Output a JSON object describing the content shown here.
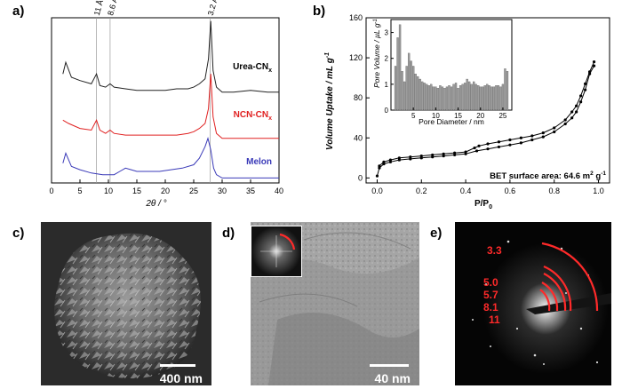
{
  "panels": {
    "a": {
      "label": "a)",
      "xlabel": "2θ / °",
      "top_annotations": [
        "11 Å",
        "8.6 Å",
        "3.2 Å"
      ],
      "series": [
        {
          "name": "Urea-CN",
          "sub": "x",
          "color": "#222222"
        },
        {
          "name": "NCN-CN",
          "sub": "x",
          "color": "#e02020"
        },
        {
          "name": "Melon",
          "sub": "",
          "color": "#3a3ab8"
        }
      ],
      "xticks": [
        "0",
        "5",
        "10",
        "15",
        "20",
        "25",
        "30",
        "35",
        "40"
      ]
    },
    "b": {
      "label": "b)",
      "ylabel": "Volume Uptake / mL g",
      "ylabel_sup": "-1",
      "xlabel_main": "P/P",
      "xlabel_sub": "0",
      "yticks": [
        "0",
        "40",
        "80",
        "120",
        "160"
      ],
      "xticks": [
        "0.0",
        "0.2",
        "0.4",
        "0.6",
        "0.8",
        "1.0"
      ],
      "bet_text": "BET surface area: 64.6 m",
      "bet_sup1": "2",
      "bet_g": " g",
      "bet_sup2": "-1",
      "inset": {
        "ylabel": "Pore Volume / µL g",
        "ylabel_sup": "-1",
        "xlabel": "Pore Diameter / nm",
        "xticks": [
          "5",
          "10",
          "15",
          "20",
          "25"
        ],
        "yticks": [
          "0",
          "1",
          "2",
          "3"
        ]
      }
    },
    "c": {
      "label": "c)",
      "scalebar": "400 nm"
    },
    "d": {
      "label": "d)",
      "scalebar": "40 nm"
    },
    "e": {
      "label": "e)",
      "rings": [
        "3.3",
        "5.0",
        "5.7",
        "8.1",
        "11"
      ]
    }
  },
  "colors": {
    "urea": "#222222",
    "ncn": "#e02020",
    "melon": "#3a3ab8",
    "ring": "#ff2a2a"
  },
  "chart_data": [
    {
      "type": "line",
      "xlabel": "2θ / °",
      "ylabel": "",
      "xlim": [
        0,
        40
      ],
      "series": [
        {
          "name": "Urea-CNx",
          "x": [
            2,
            2.5,
            3.5,
            5,
            7,
            7.9,
            8.5,
            9.5,
            10.3,
            11,
            13,
            15,
            18,
            20,
            22,
            24,
            25,
            26,
            27,
            27.6,
            28,
            28.4,
            29,
            30,
            32,
            35,
            38,
            40
          ],
          "y": [
            0.66,
            0.73,
            0.64,
            0.62,
            0.6,
            0.66,
            0.59,
            0.58,
            0.6,
            0.58,
            0.57,
            0.56,
            0.56,
            0.56,
            0.57,
            0.57,
            0.58,
            0.6,
            0.63,
            0.75,
            0.98,
            0.68,
            0.58,
            0.55,
            0.55,
            0.56,
            0.55,
            0.55
          ]
        },
        {
          "name": "NCN-CNx",
          "x": [
            2,
            3,
            5,
            7,
            7.9,
            8.5,
            9.5,
            10.3,
            11,
            13,
            15,
            18,
            20,
            22,
            24,
            25,
            26,
            27,
            27.6,
            28,
            28.4,
            29,
            30,
            32,
            35,
            38,
            40
          ],
          "y": [
            0.38,
            0.36,
            0.33,
            0.32,
            0.38,
            0.32,
            0.3,
            0.32,
            0.3,
            0.29,
            0.29,
            0.29,
            0.29,
            0.29,
            0.3,
            0.31,
            0.33,
            0.36,
            0.45,
            0.66,
            0.4,
            0.3,
            0.27,
            0.27,
            0.27,
            0.27,
            0.27
          ]
        },
        {
          "name": "Melon",
          "x": [
            2,
            2.5,
            3.5,
            5,
            7,
            9,
            11,
            12,
            13,
            14,
            15,
            17,
            19,
            21,
            23,
            25,
            26,
            27,
            27.5,
            28,
            28.5,
            29,
            30,
            32,
            35,
            38,
            40
          ],
          "y": [
            0.12,
            0.18,
            0.1,
            0.08,
            0.06,
            0.05,
            0.05,
            0.07,
            0.09,
            0.08,
            0.07,
            0.07,
            0.07,
            0.08,
            0.09,
            0.11,
            0.15,
            0.22,
            0.27,
            0.2,
            0.09,
            0.05,
            0.03,
            0.03,
            0.03,
            0.03,
            0.03
          ]
        }
      ],
      "annotations": [
        "11 Å",
        "8.6 Å",
        "3.2 Å"
      ]
    },
    {
      "type": "line",
      "xlabel": "P/P0",
      "ylabel": "Volume Uptake / mL g-1",
      "xlim": [
        -0.05,
        1.05
      ],
      "ylim": [
        -5,
        160
      ],
      "series": [
        {
          "name": "adsorption",
          "x": [
            0.0,
            0.01,
            0.03,
            0.06,
            0.1,
            0.15,
            0.2,
            0.25,
            0.3,
            0.35,
            0.4,
            0.45,
            0.5,
            0.55,
            0.6,
            0.65,
            0.7,
            0.75,
            0.8,
            0.85,
            0.88,
            0.9,
            0.92,
            0.94,
            0.96,
            0.98
          ],
          "y": [
            2,
            10,
            14,
            16,
            18,
            19,
            20,
            21,
            22,
            23,
            24,
            27,
            29,
            31,
            33,
            35,
            38,
            41,
            46,
            54,
            60,
            66,
            76,
            88,
            104,
            112
          ]
        },
        {
          "name": "desorption",
          "x": [
            0.98,
            0.96,
            0.94,
            0.92,
            0.9,
            0.88,
            0.85,
            0.8,
            0.75,
            0.7,
            0.65,
            0.6,
            0.55,
            0.5,
            0.46,
            0.44,
            0.4,
            0.35,
            0.3,
            0.25,
            0.2,
            0.15,
            0.1,
            0.06,
            0.03,
            0.01
          ],
          "y": [
            116,
            106,
            94,
            82,
            72,
            66,
            58,
            50,
            45,
            42,
            40,
            38,
            36,
            34,
            32,
            30,
            26,
            25,
            24,
            23,
            22,
            21,
            20,
            18,
            16,
            12
          ]
        }
      ],
      "annotations": [
        "BET surface area: 64.6 m2 g-1"
      ]
    },
    {
      "type": "bar",
      "xlabel": "Pore Diameter / nm",
      "ylabel": "Pore Volume / µL g-1",
      "xlim": [
        0,
        27
      ],
      "ylim": [
        0,
        3.5
      ],
      "x": [
        1,
        1.5,
        2,
        2.5,
        3,
        3.5,
        4,
        4.5,
        5,
        5.5,
        6,
        6.5,
        7,
        7.5,
        8,
        8.5,
        9,
        9.5,
        10,
        10.5,
        11,
        11.5,
        12,
        12.5,
        13,
        13.5,
        14,
        14.5,
        15,
        15.5,
        16,
        16.5,
        17,
        17.5,
        18,
        18.5,
        19,
        19.5,
        20,
        20.5,
        21,
        21.5,
        22,
        22.5,
        23,
        23.5,
        24,
        24.5,
        25,
        25.5,
        26
      ],
      "values": [
        1.7,
        2.8,
        3.3,
        1.5,
        1.1,
        1.7,
        2.2,
        1.9,
        1.7,
        1.4,
        1.3,
        1.2,
        1.1,
        1.05,
        1.0,
        0.95,
        1.0,
        0.9,
        0.9,
        0.85,
        0.95,
        0.9,
        0.85,
        0.9,
        0.95,
        0.9,
        1.0,
        1.05,
        0.85,
        0.95,
        1.0,
        1.05,
        1.2,
        1.1,
        1.0,
        1.1,
        1.0,
        0.95,
        0.9,
        0.9,
        0.95,
        1.0,
        0.95,
        0.9,
        0.9,
        0.95,
        0.95,
        0.9,
        1.0,
        1.6,
        1.5
      ]
    }
  ]
}
